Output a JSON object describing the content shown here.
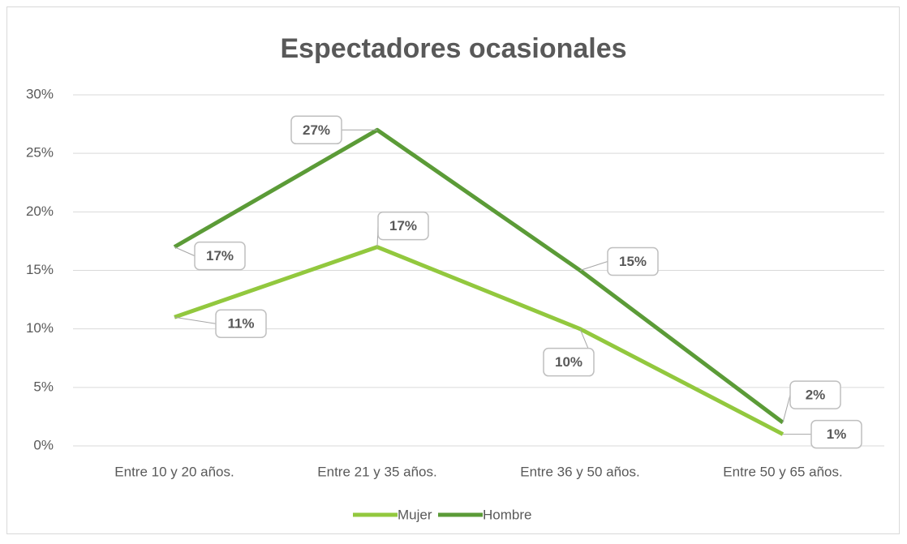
{
  "chart_data": {
    "type": "line",
    "title": "Espectadores ocasionales",
    "categories": [
      "Entre 10 y 20 años.",
      "Entre 21 y 35 años.",
      "Entre 36 y 50 años.",
      "Entre 50 y 65 años."
    ],
    "series": [
      {
        "name": "Mujer",
        "color": "#92c83e",
        "values": [
          11,
          17,
          10,
          1
        ],
        "value_labels": [
          "11%",
          "17%",
          "10%",
          "1%"
        ]
      },
      {
        "name": "Hombre",
        "color": "#5b9b37",
        "values": [
          17,
          27,
          15,
          2
        ],
        "value_labels": [
          "17%",
          "27%",
          "15%",
          "2%"
        ]
      }
    ],
    "ylim": [
      0,
      30
    ],
    "yticks": [
      {
        "value": 0,
        "label": "0%"
      },
      {
        "value": 5,
        "label": "5%"
      },
      {
        "value": 10,
        "label": "10%"
      },
      {
        "value": 15,
        "label": "15%"
      },
      {
        "value": 20,
        "label": "20%"
      },
      {
        "value": 25,
        "label": "25%"
      },
      {
        "value": 30,
        "label": "30%"
      }
    ],
    "grid": true,
    "legend": "bottom"
  }
}
